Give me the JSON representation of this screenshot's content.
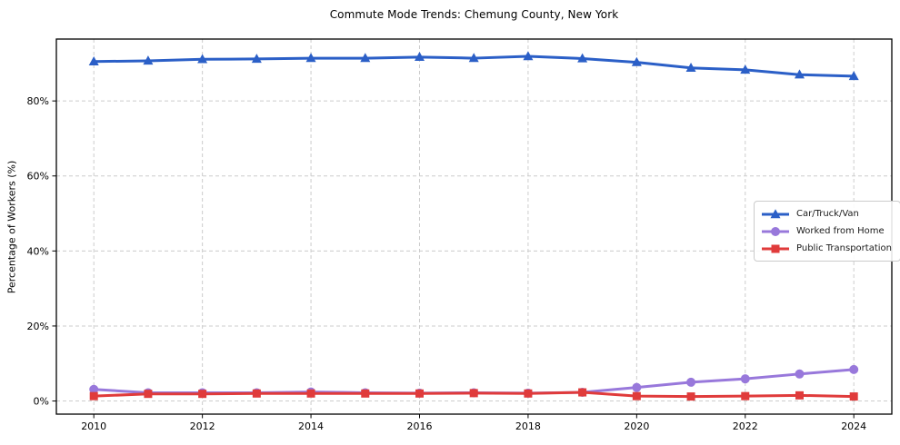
{
  "chart_data": {
    "type": "line",
    "title": "Commute Mode Trends: Chemung County, New York",
    "xlabel": "",
    "ylabel": "Percentage of Workers (%)",
    "x": [
      2010,
      2011,
      2012,
      2013,
      2014,
      2015,
      2016,
      2017,
      2018,
      2019,
      2020,
      2021,
      2022,
      2023,
      2024
    ],
    "series": [
      {
        "name": "Car/Truck/Van",
        "color": "#2b5fc7",
        "marker": "triangle-up",
        "values": [
          90.5,
          90.7,
          91.1,
          91.2,
          91.4,
          91.4,
          91.7,
          91.4,
          91.9,
          91.3,
          90.3,
          88.8,
          88.3,
          87.0,
          86.6
        ]
      },
      {
        "name": "Worked from Home",
        "color": "#9878db",
        "marker": "circle",
        "values": [
          3.1,
          2.2,
          2.2,
          2.2,
          2.4,
          2.2,
          2.1,
          2.2,
          2.1,
          2.3,
          3.6,
          5.0,
          5.9,
          7.2,
          8.4
        ]
      },
      {
        "name": "Public Transportation",
        "color": "#e03b3b",
        "marker": "square",
        "values": [
          1.3,
          1.9,
          1.9,
          2.0,
          2.0,
          2.0,
          2.0,
          2.1,
          2.0,
          2.3,
          1.3,
          1.2,
          1.3,
          1.5,
          1.2
        ]
      }
    ],
    "xticks": [
      {
        "value": 2010,
        "label": "2010"
      },
      {
        "value": 2012,
        "label": "2012"
      },
      {
        "value": 2014,
        "label": "2014"
      },
      {
        "value": 2016,
        "label": "2016"
      },
      {
        "value": 2018,
        "label": "2018"
      },
      {
        "value": 2020,
        "label": "2020"
      },
      {
        "value": 2022,
        "label": "2022"
      },
      {
        "value": 2024,
        "label": "2024"
      }
    ],
    "yticks": [
      {
        "value": 0,
        "label": "0%"
      },
      {
        "value": 20,
        "label": "20%"
      },
      {
        "value": 40,
        "label": "40%"
      },
      {
        "value": 60,
        "label": "60%"
      },
      {
        "value": 80,
        "label": "80%"
      }
    ],
    "xlim": [
      2009.31,
      2024.7
    ],
    "ylim": [
      -3.5,
      96.5
    ],
    "grid": true,
    "grid_color": "#cccccc",
    "frame_color": "#000000",
    "legend_position": "center-right"
  }
}
